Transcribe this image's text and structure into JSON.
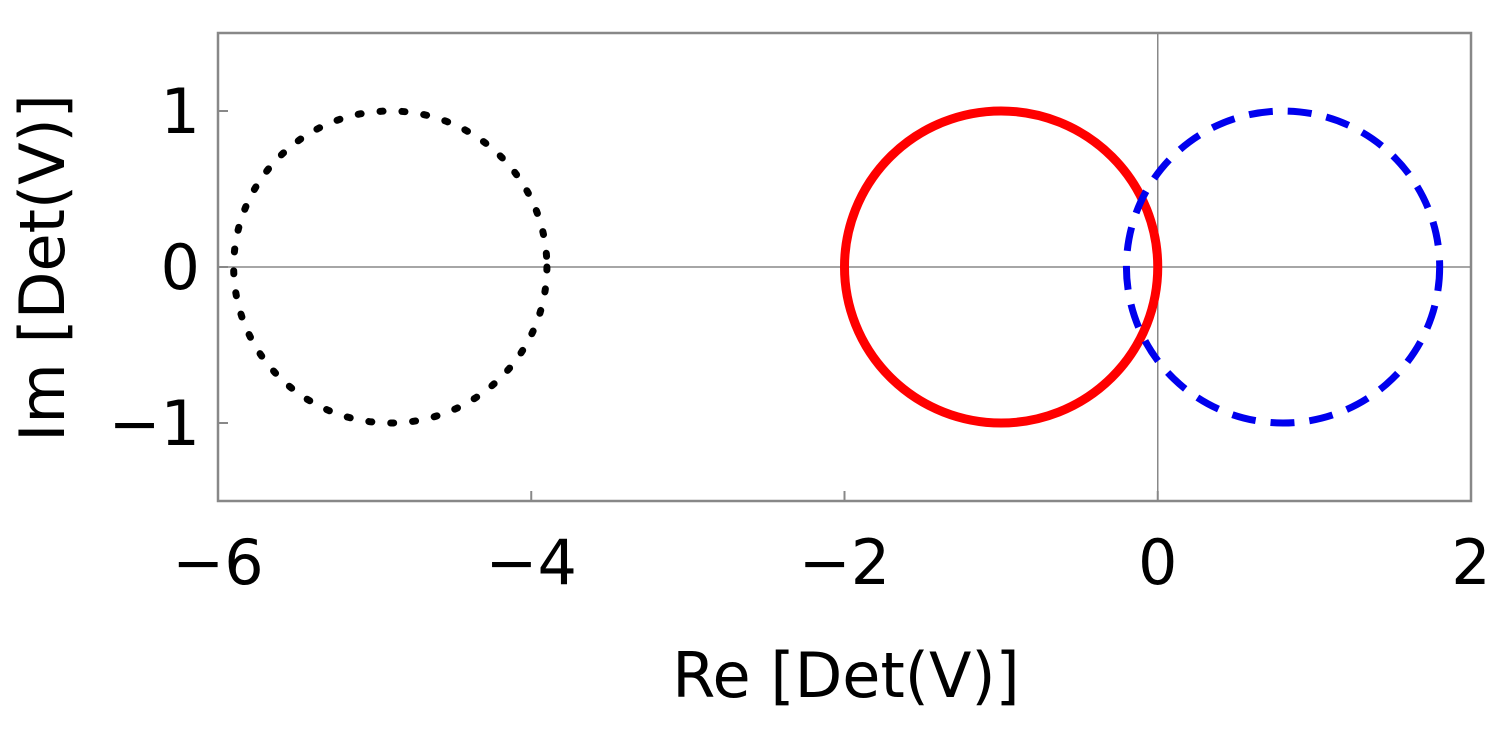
{
  "chart_data": {
    "type": "line",
    "xlabel": "Re [Det(V)]",
    "ylabel": "Im [Det(V)]",
    "xlim": [
      -6,
      2
    ],
    "ylim": [
      -1.5,
      1.5
    ],
    "xticks": [
      -6,
      -4,
      -2,
      0,
      2
    ],
    "yticks": [
      -1,
      0,
      1
    ],
    "xtick_labels": [
      "−6",
      "−4",
      "−2",
      "0",
      "2"
    ],
    "ytick_labels": [
      "−1",
      "0",
      "1"
    ],
    "reference_lines": {
      "x": 0,
      "y": 0
    },
    "grid": false,
    "legend": "none",
    "series": [
      {
        "center": [
          -4.9,
          0
        ],
        "radius": 1,
        "color": "#000000",
        "style": "dotted"
      },
      {
        "center": [
          -1.0,
          0
        ],
        "radius": 1,
        "color": "#ff0000",
        "style": "solid"
      },
      {
        "center": [
          0.8,
          0
        ],
        "radius": 1,
        "color": "#0000ee",
        "style": "dashed"
      }
    ]
  }
}
